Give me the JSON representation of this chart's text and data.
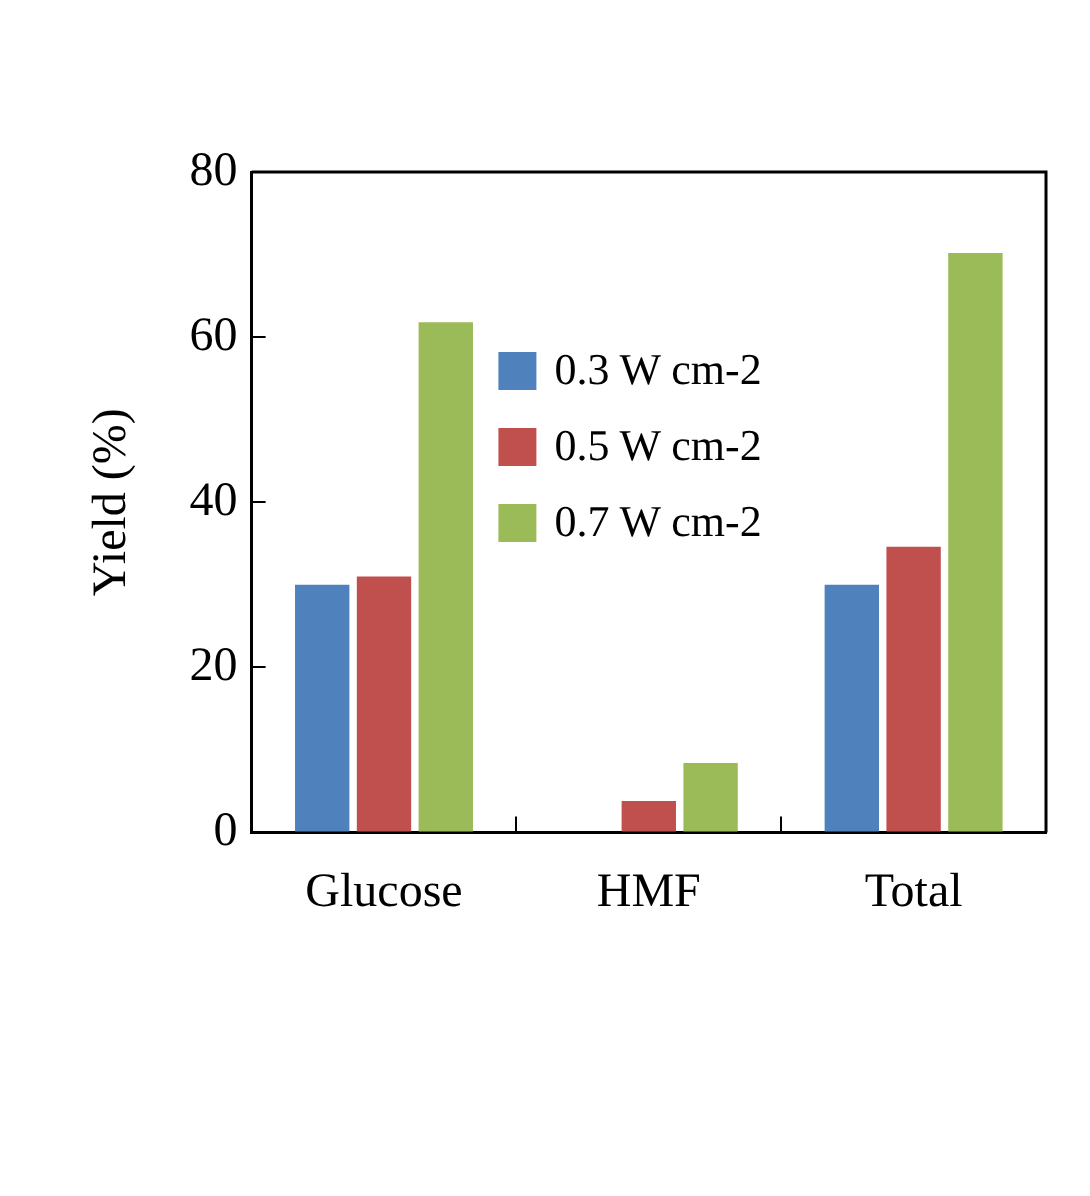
{
  "chart_data": {
    "type": "bar",
    "ylabel": "Yield (%)",
    "categories": [
      "Glucose",
      "HMF",
      "Total"
    ],
    "series": [
      {
        "name": "0.3 W cm-2",
        "color": "#4f81bd",
        "values": [
          30,
          0,
          30
        ]
      },
      {
        "name": "0.5 W cm-2",
        "color": "#c0504d",
        "values": [
          31,
          3.8,
          34.6
        ]
      },
      {
        "name": "0.7 W cm-2",
        "color": "#9bbb59",
        "values": [
          61.8,
          8.4,
          70.2
        ]
      }
    ],
    "ylim": [
      0,
      80
    ],
    "yticks": [
      0,
      20,
      40,
      60,
      80
    ],
    "grid": false,
    "legend": "top"
  }
}
